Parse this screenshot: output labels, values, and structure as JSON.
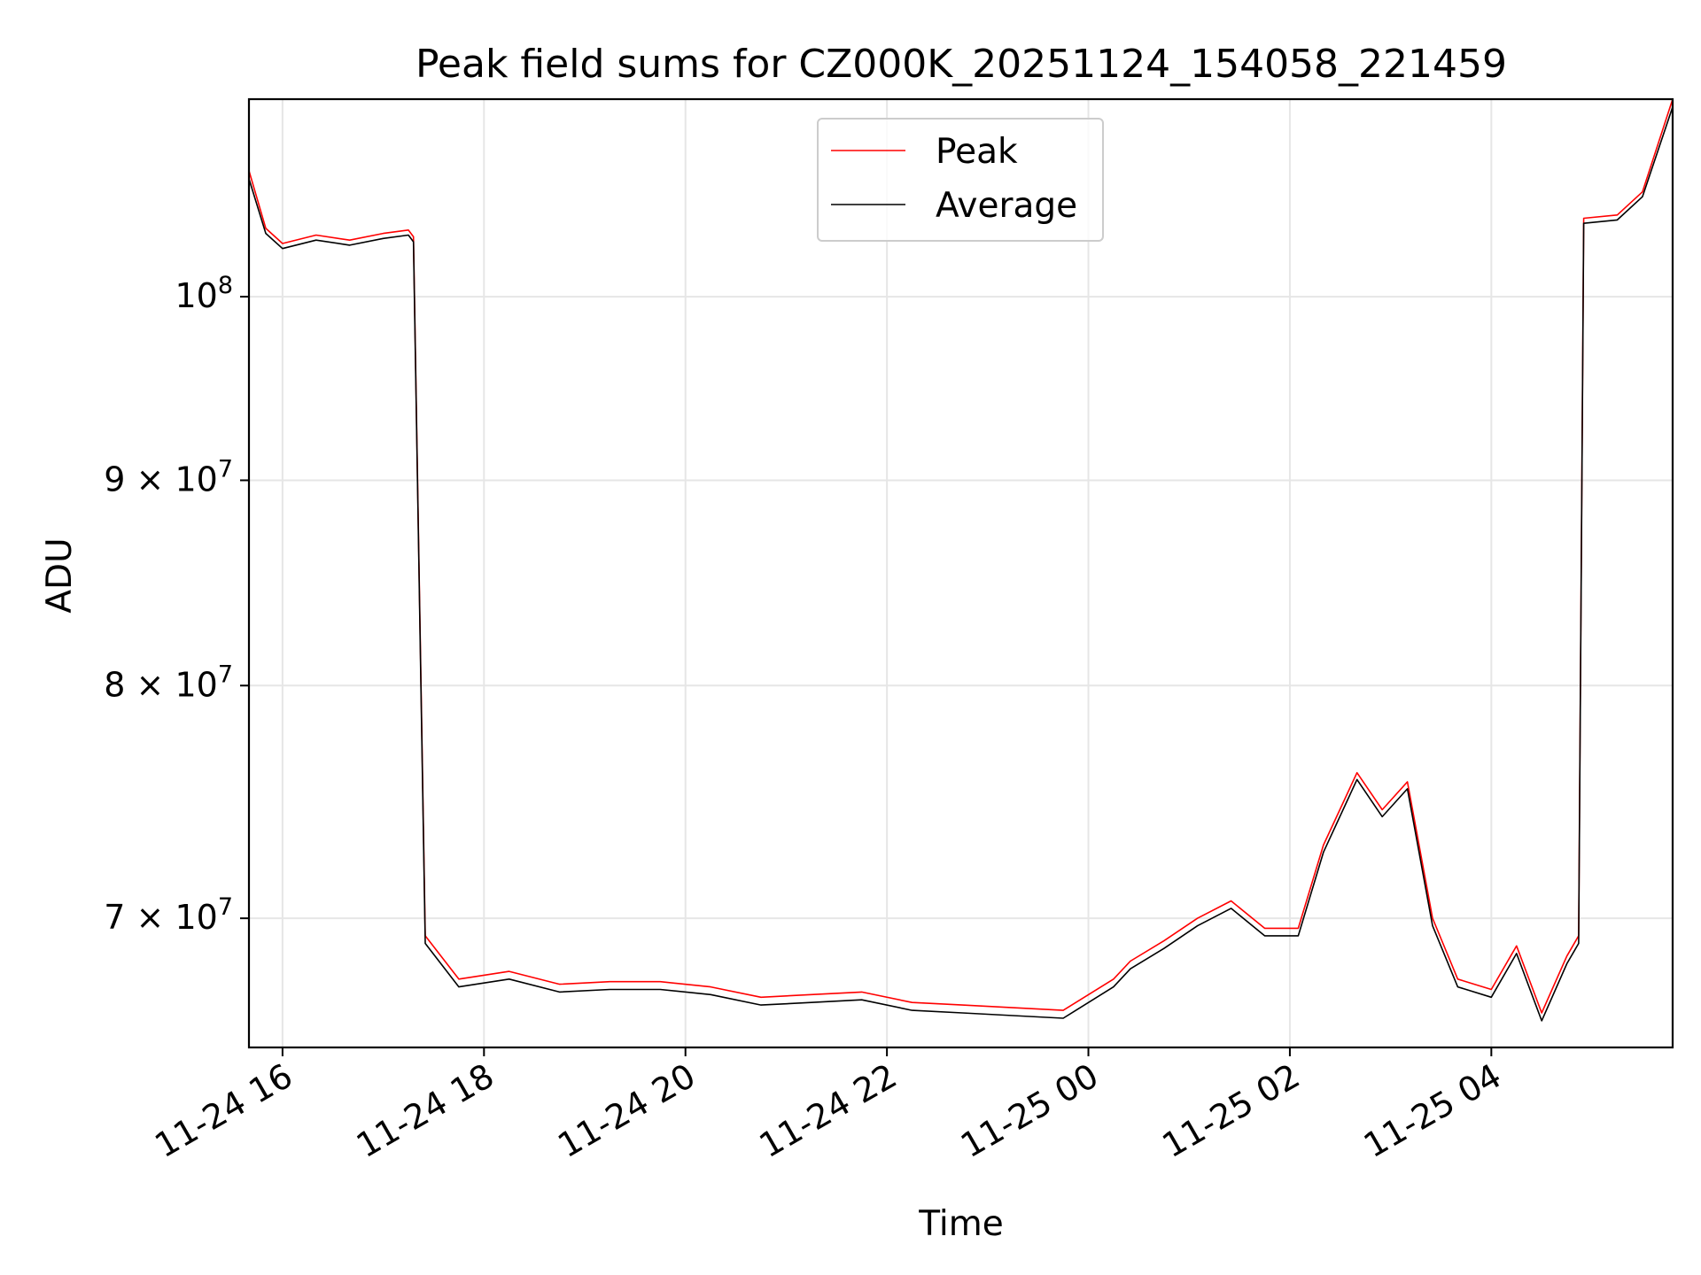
{
  "chart_data": {
    "type": "line",
    "title": "Peak field sums for CZ000K_20251124_154058_221459",
    "xlabel": "Time",
    "ylabel": "ADU",
    "yscale": "log",
    "grid": true,
    "legend_position": "top-center",
    "xlim": [
      "2025-11-24 15:40",
      "2025-11-25 05:48"
    ],
    "ylim": [
      65000000,
      112000000
    ],
    "x_ticks": [
      {
        "value": "2025-11-24 16:00",
        "label": "11-24 16"
      },
      {
        "value": "2025-11-24 18:00",
        "label": "11-24 18"
      },
      {
        "value": "2025-11-24 20:00",
        "label": "11-24 20"
      },
      {
        "value": "2025-11-24 22:00",
        "label": "11-24 22"
      },
      {
        "value": "2025-11-25 00:00",
        "label": "11-25 00"
      },
      {
        "value": "2025-11-25 02:00",
        "label": "11-25 02"
      },
      {
        "value": "2025-11-25 04:00",
        "label": "11-25 04"
      }
    ],
    "y_ticks": [
      {
        "value": 70000000,
        "base": "7 × 10",
        "exp": "7"
      },
      {
        "value": 80000000,
        "base": "8 × 10",
        "exp": "7"
      },
      {
        "value": 90000000,
        "base": "9 × 10",
        "exp": "7"
      },
      {
        "value": 100000000,
        "base": "10",
        "exp": "8"
      }
    ],
    "series": [
      {
        "name": "Peak",
        "color": "#ff0000",
        "x": [
          "2025-11-24 15:40",
          "2025-11-24 15:50",
          "2025-11-24 16:00",
          "2025-11-24 16:20",
          "2025-11-24 16:40",
          "2025-11-24 17:00",
          "2025-11-24 17:15",
          "2025-11-24 17:18",
          "2025-11-24 17:25",
          "2025-11-24 17:45",
          "2025-11-24 18:15",
          "2025-11-24 18:45",
          "2025-11-24 19:15",
          "2025-11-24 19:45",
          "2025-11-24 20:15",
          "2025-11-24 20:45",
          "2025-11-24 21:15",
          "2025-11-24 21:45",
          "2025-11-24 22:15",
          "2025-11-24 22:45",
          "2025-11-24 23:15",
          "2025-11-24 23:45",
          "2025-11-25 00:15",
          "2025-11-25 00:25",
          "2025-11-25 00:45",
          "2025-11-25 01:05",
          "2025-11-25 01:25",
          "2025-11-25 01:45",
          "2025-11-25 02:05",
          "2025-11-25 02:20",
          "2025-11-25 02:40",
          "2025-11-25 02:55",
          "2025-11-25 03:10",
          "2025-11-25 03:25",
          "2025-11-25 03:40",
          "2025-11-25 04:00",
          "2025-11-25 04:15",
          "2025-11-25 04:30",
          "2025-11-25 04:45",
          "2025-11-25 04:52",
          "2025-11-25 04:55",
          "2025-11-25 05:15",
          "2025-11-25 05:30",
          "2025-11-25 05:48"
        ],
        "y": [
          107500000,
          104000000,
          103100000,
          103600000,
          103300000,
          103700000,
          103900000,
          103500000,
          69300000,
          67600000,
          67900000,
          67400000,
          67500000,
          67500000,
          67300000,
          66900000,
          67000000,
          67100000,
          66700000,
          66600000,
          66500000,
          66400000,
          67600000,
          68300000,
          69100000,
          70000000,
          70700000,
          69600000,
          69600000,
          73000000,
          76100000,
          74500000,
          75700000,
          70000000,
          67600000,
          67200000,
          68900000,
          66300000,
          68500000,
          69300000,
          104600000,
          104800000,
          106200000,
          112000000
        ]
      },
      {
        "name": "Average",
        "color": "#000000",
        "x": [
          "2025-11-24 15:40",
          "2025-11-24 15:50",
          "2025-11-24 16:00",
          "2025-11-24 16:20",
          "2025-11-24 16:40",
          "2025-11-24 17:00",
          "2025-11-24 17:15",
          "2025-11-24 17:18",
          "2025-11-24 17:25",
          "2025-11-24 17:45",
          "2025-11-24 18:15",
          "2025-11-24 18:45",
          "2025-11-24 19:15",
          "2025-11-24 19:45",
          "2025-11-24 20:15",
          "2025-11-24 20:45",
          "2025-11-24 21:15",
          "2025-11-24 21:45",
          "2025-11-24 22:15",
          "2025-11-24 22:45",
          "2025-11-24 23:15",
          "2025-11-24 23:45",
          "2025-11-25 00:15",
          "2025-11-25 00:25",
          "2025-11-25 00:45",
          "2025-11-25 01:05",
          "2025-11-25 01:25",
          "2025-11-25 01:45",
          "2025-11-25 02:05",
          "2025-11-25 02:20",
          "2025-11-25 02:40",
          "2025-11-25 02:55",
          "2025-11-25 03:10",
          "2025-11-25 03:25",
          "2025-11-25 03:40",
          "2025-11-25 04:00",
          "2025-11-25 04:15",
          "2025-11-25 04:30",
          "2025-11-25 04:45",
          "2025-11-25 04:52",
          "2025-11-25 04:55",
          "2025-11-25 05:15",
          "2025-11-25 05:30",
          "2025-11-25 05:48"
        ],
        "y": [
          107000000,
          103700000,
          102800000,
          103300000,
          103000000,
          103400000,
          103600000,
          103200000,
          69000000,
          67300000,
          67600000,
          67100000,
          67200000,
          67200000,
          67000000,
          66600000,
          66700000,
          66800000,
          66400000,
          66300000,
          66200000,
          66100000,
          67300000,
          68000000,
          68800000,
          69700000,
          70400000,
          69300000,
          69300000,
          72700000,
          75800000,
          74200000,
          75400000,
          69700000,
          67300000,
          66900000,
          68600000,
          66000000,
          68200000,
          69000000,
          104300000,
          104500000,
          105900000,
          111500000
        ]
      }
    ]
  }
}
